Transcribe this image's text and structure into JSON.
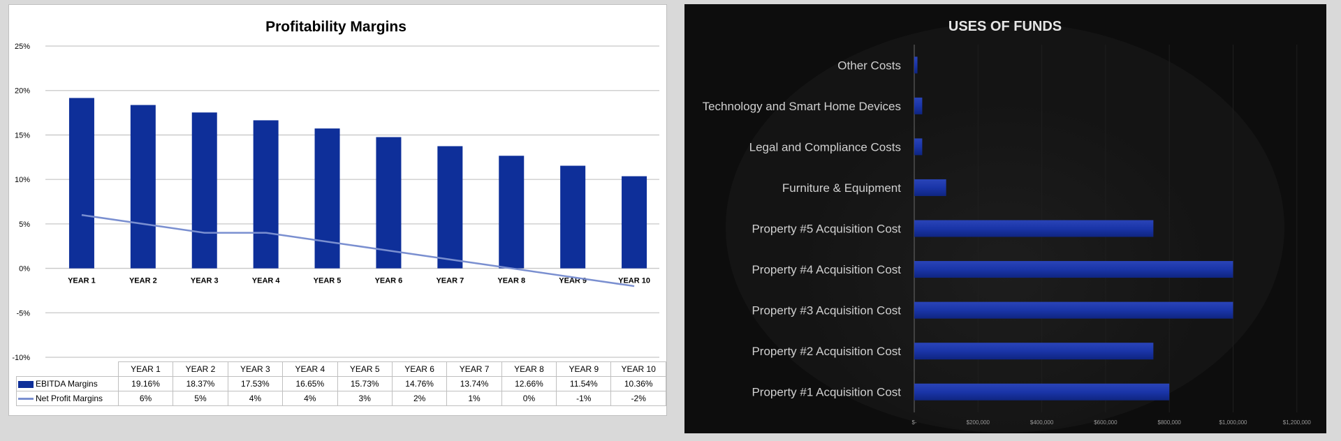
{
  "chart_data": [
    {
      "type": "bar+line",
      "title": "Profitability Margins",
      "categories": [
        "YEAR 1",
        "YEAR 2",
        "YEAR 3",
        "YEAR 4",
        "YEAR 5",
        "YEAR 6",
        "YEAR 7",
        "YEAR 8",
        "YEAR 9",
        "YEAR 10"
      ],
      "ylim": [
        -10,
        25
      ],
      "yticks": [
        "25%",
        "20%",
        "15%",
        "10%",
        "5%",
        "0%",
        "-5%",
        "-10%"
      ],
      "ytick_values": [
        25,
        20,
        15,
        10,
        5,
        0,
        -5,
        -10
      ],
      "grid": true,
      "legend": "data-table",
      "series": [
        {
          "name": "EBITDA Margins",
          "type": "bar",
          "color": "#0e2f99",
          "values": [
            19.16,
            18.37,
            17.53,
            16.65,
            15.73,
            14.76,
            13.74,
            12.66,
            11.54,
            10.36
          ],
          "labels": [
            "19.16%",
            "18.37%",
            "17.53%",
            "16.65%",
            "15.73%",
            "14.76%",
            "13.74%",
            "12.66%",
            "11.54%",
            "10.36%"
          ]
        },
        {
          "name": "Net Profit Margins",
          "type": "line",
          "color": "#7a8fd0",
          "values": [
            6,
            5,
            4,
            4,
            3,
            2,
            1,
            0,
            -1,
            -2
          ],
          "labels": [
            "6%",
            "5%",
            "4%",
            "4%",
            "3%",
            "2%",
            "1%",
            "0%",
            "-1%",
            "-2%"
          ]
        }
      ]
    },
    {
      "type": "bar",
      "orientation": "horizontal",
      "title": "USES OF FUNDS",
      "categories": [
        "Other Costs",
        "Technology and Smart Home Devices",
        "Legal and Compliance Costs",
        "Furniture & Equipment",
        "Property #5 Acquisition Cost",
        "Property #4 Acquisition Cost",
        "Property #3 Acquisition Cost",
        "Property #2 Acquisition Cost",
        "Property #1 Acquisition Cost"
      ],
      "values": [
        10000,
        25000,
        25000,
        100000,
        750000,
        1000000,
        1000000,
        750000,
        800000
      ],
      "xlim": [
        0,
        1200000
      ],
      "xticks": [
        "$-",
        "$200,000",
        "$400,000",
        "$600,000",
        "$800,000",
        "$1,000,000",
        "$1,200,000"
      ],
      "xtick_values": [
        0,
        200000,
        400000,
        600000,
        800000,
        1000000,
        1200000
      ],
      "color": "#1a35a8",
      "background": "#0d0d0d"
    }
  ]
}
